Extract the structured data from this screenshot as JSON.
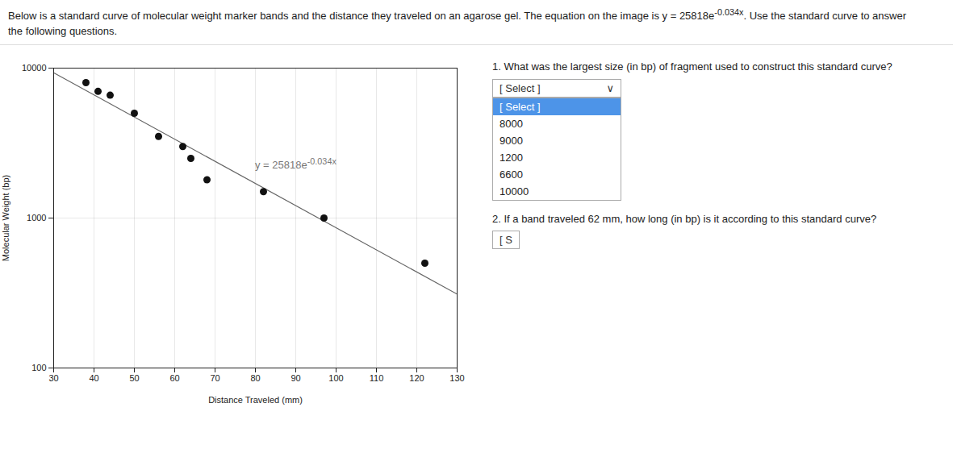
{
  "chart_data": {
    "type": "scatter",
    "subtitle": {
      "text": "Below is a standard curve of molecular weight marker bands and the distance they traveled on an agarose gel. The equation on the image is y = 25818e",
      "exponent": "-0.034x",
      "suffix": ". Use the standard curve to answer",
      "line2": "the following questions."
    },
    "xlabel": "Distance Traveled (mm)",
    "ylabel": "Molecular Weight (bp)",
    "log": "y",
    "grid": true,
    "xlim": [
      30,
      130
    ],
    "ylim": [
      100,
      10000
    ],
    "xticks": [
      30,
      40,
      50,
      60,
      70,
      80,
      90,
      100,
      110,
      120,
      130
    ],
    "yticks": [
      100,
      1000,
      10000
    ],
    "series": [
      {
        "type": "line",
        "color": "#666666",
        "x": [
          30,
          130
        ],
        "values": [
          9309.84,
          310.7
        ]
      },
      {
        "type": "scatter",
        "color": "#111111",
        "x": [
          38,
          41,
          44,
          50,
          56,
          62,
          64,
          68,
          82,
          97,
          122
        ],
        "values": [
          8000,
          7000,
          6600,
          5000,
          3500,
          3000,
          2500,
          1800,
          1500,
          1000,
          500
        ]
      }
    ],
    "annotations": [
      {
        "text": "y = 25818e",
        "exponent": "-0.034x"
      }
    ],
    "questions": [
      {
        "text": "1. What was the largest size (in bp) of fragment used to construct this standard curve?",
        "dropdown": "[ Select ]",
        "icon": "∨",
        "options": [
          "[ Select ]",
          "8000",
          "9000",
          "1200",
          "6600",
          "10000"
        ],
        "highlight_color": "#4d94e8",
        "highlight_text_color": "#ffffff"
      },
      {
        "text": "2. If a band traveled 62 mm, how long (in bp) is it according to this standard curve?",
        "dropdown": "[ S"
      }
    ]
  }
}
